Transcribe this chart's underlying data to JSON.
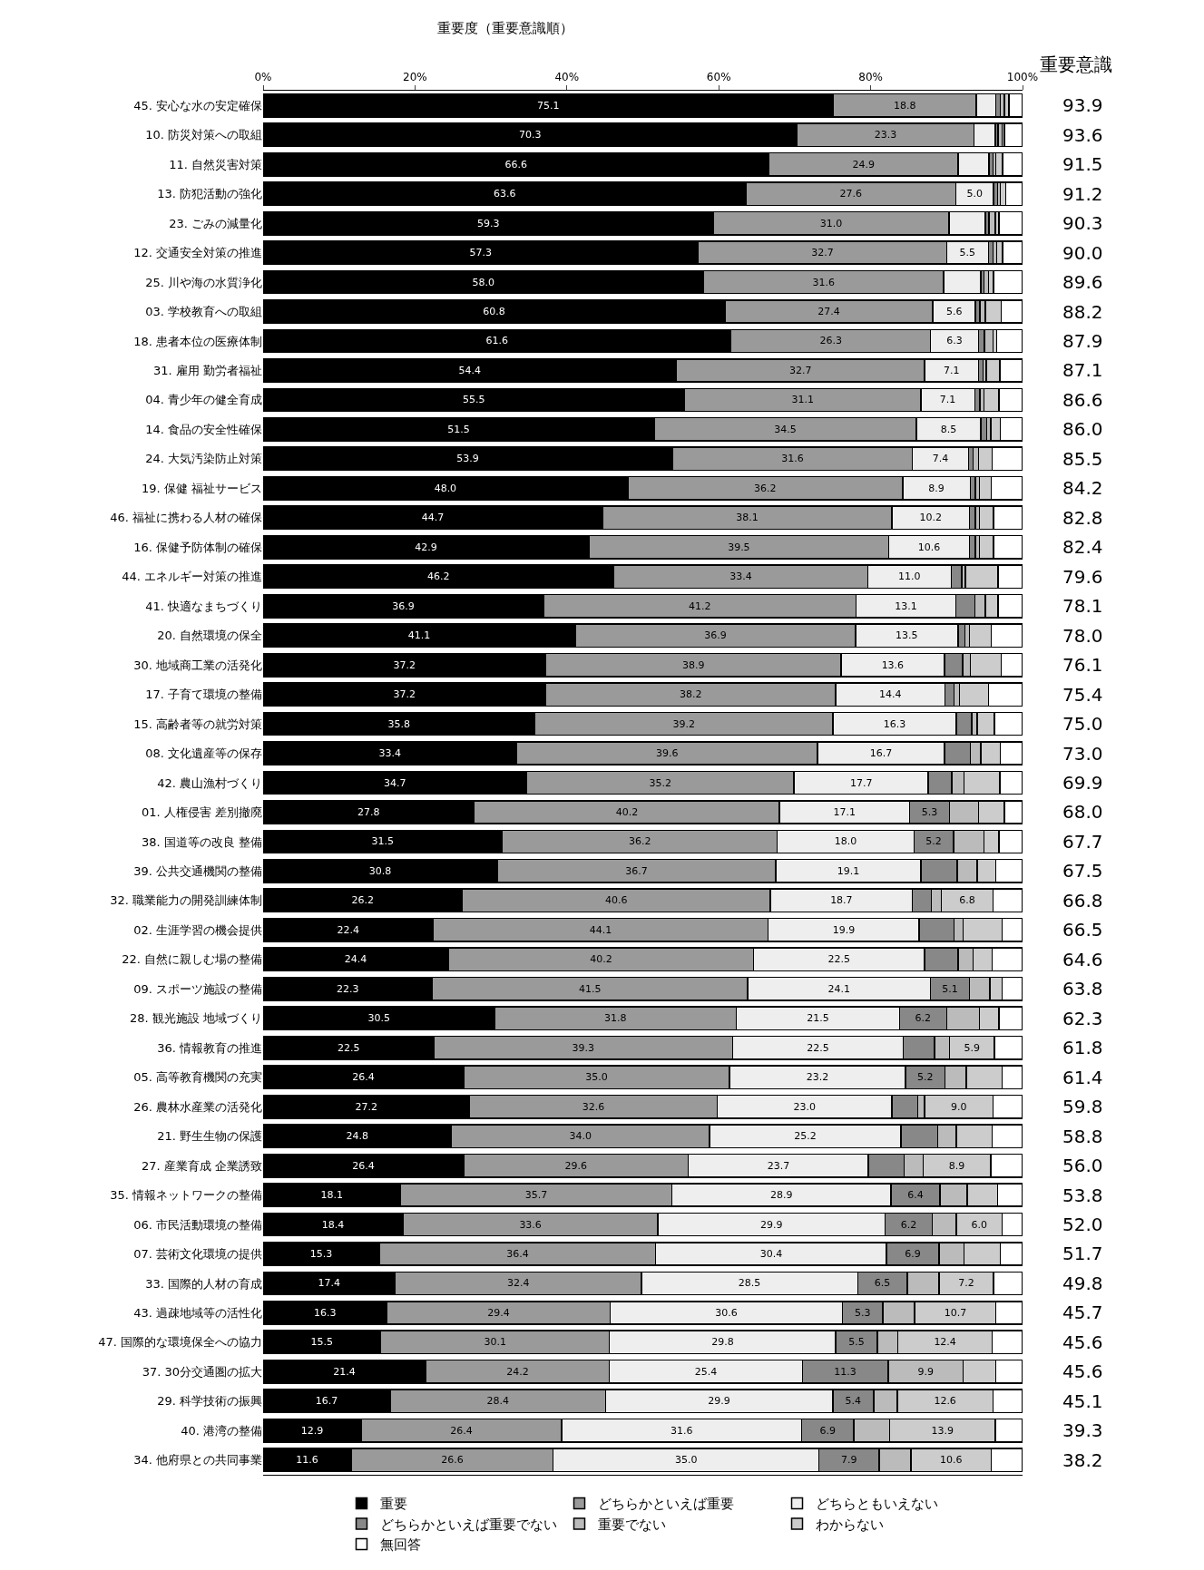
{
  "chart_data": {
    "type": "bar",
    "orientation": "horizontal",
    "stacked": true,
    "title": "重要度（重要意識順）",
    "categories": [
      "45. 安心な水の安定確保",
      "10. 防災対策への取組",
      "11. 自然災害対策",
      "13. 防犯活動の強化",
      "23. ごみの減量化",
      "12. 交通安全対策の推進",
      "25. 川や海の水質浄化",
      "03. 学校教育への取組",
      "18. 患者本位の医療体制",
      "31. 雇用 勤労者福祉",
      "04. 青少年の健全育成",
      "14. 食品の安全性確保",
      "24. 大気汚染防止対策",
      "19. 保健 福祉サービス",
      "46. 福祉に携わる人材の確保",
      "16. 保健予防体制の確保",
      "44. エネルギー対策の推進",
      "41. 快適なまちづくり",
      "20. 自然環境の保全",
      "30. 地域商工業の活発化",
      "17. 子育て環境の整備",
      "15. 高齢者等の就労対策",
      "08. 文化遺産等の保存",
      "42. 農山漁村づくり",
      "01. 人権侵害 差別撤廃",
      "38. 国道等の改良 整備",
      "39. 公共交通機関の整備",
      "32. 職業能力の開発訓練体制",
      "02. 生涯学習の機会提供",
      "22. 自然に親しむ場の整備",
      "09. スポーツ施設の整備",
      "28. 観光施設 地域づくり",
      "36. 情報教育の推進",
      "05. 高等教育機関の充実",
      "26. 農林水産業の活発化",
      "21. 野生生物の保護",
      "27. 産業育成 企業誘致",
      "35. 情報ネットワークの整備",
      "06. 市民活動環境の整備",
      "07. 芸術文化環境の提供",
      "33. 国際的人材の育成",
      "43. 過疎地域等の活性化",
      "47. 国際的な環境保全への協力",
      "37. 30分交通圏の拡大",
      "29. 科学技術の振興",
      "40. 港湾の整備",
      "34. 他府県との共同事業"
    ],
    "series": [
      {
        "name": "重要",
        "color": "#000000",
        "values": [
          75.1,
          70.3,
          66.6,
          63.6,
          59.3,
          57.3,
          58.0,
          60.8,
          61.6,
          54.4,
          55.5,
          51.5,
          53.9,
          48.0,
          44.7,
          42.9,
          46.2,
          36.9,
          41.1,
          37.2,
          37.2,
          35.8,
          33.4,
          34.7,
          27.8,
          31.5,
          30.8,
          26.2,
          22.4,
          24.4,
          22.3,
          30.5,
          22.5,
          26.4,
          27.2,
          24.8,
          26.4,
          18.1,
          18.4,
          15.3,
          17.4,
          16.3,
          15.5,
          21.4,
          16.7,
          12.9,
          11.6
        ],
        "value_labels": [
          "75.1",
          "70.3",
          "66.6",
          "63.6",
          "59.3",
          "57.3",
          "58.0",
          "60.8",
          "61.6",
          "54.4",
          "55.5",
          "51.5",
          "53.9",
          "48.0",
          "44.7",
          "42.9",
          "46.2",
          "36.9",
          "41.1",
          "37.2",
          "37.2",
          "35.8",
          "33.4",
          "34.7",
          "27.8",
          "31.5",
          "30.8",
          "26.2",
          "22.4",
          "24.4",
          "22.3",
          "30.5",
          "22.5",
          "26.4",
          "27.2",
          "24.8",
          "26.4",
          "18.1",
          "18.4",
          "15.3",
          "17.4",
          "16.3",
          "15.5",
          "21.4",
          "16.7",
          "12.9",
          "11.6"
        ]
      },
      {
        "name": "どちらかといえば重要",
        "color": "#9a9a9a",
        "values": [
          18.8,
          23.3,
          24.9,
          27.6,
          31.0,
          32.7,
          31.6,
          27.4,
          26.3,
          32.7,
          31.1,
          34.5,
          31.6,
          36.2,
          38.1,
          39.5,
          33.4,
          41.2,
          36.9,
          38.9,
          38.2,
          39.2,
          39.6,
          35.2,
          40.2,
          36.2,
          36.7,
          40.6,
          44.1,
          40.2,
          41.5,
          31.8,
          39.3,
          35.0,
          32.6,
          34.0,
          29.6,
          35.7,
          33.6,
          36.4,
          32.4,
          29.4,
          30.1,
          24.2,
          28.4,
          26.4,
          26.6
        ],
        "value_labels": [
          "18.8",
          "23.3",
          "24.9",
          "27.6",
          "31.0",
          "32.7",
          "31.6",
          "27.4",
          "26.3",
          "32.7",
          "31.1",
          "34.5",
          "31.6",
          "36.2",
          "38.1",
          "39.5",
          "33.4",
          "41.2",
          "36.9",
          "38.9",
          "38.2",
          "39.2",
          "39.6",
          "35.2",
          "40.2",
          "36.2",
          "36.7",
          "40.6",
          "44.1",
          "40.2",
          "41.5",
          "31.8",
          "39.3",
          "35.0",
          "32.6",
          "34.0",
          "29.6",
          "35.7",
          "33.6",
          "36.4",
          "32.4",
          "29.4",
          "30.1",
          "24.2",
          "28.4",
          "26.4",
          "26.6"
        ]
      },
      {
        "name": "どちらともいえない",
        "color": "#eeeeee",
        "values": [
          2.6,
          2.8,
          4.1,
          5.0,
          4.8,
          5.5,
          4.9,
          5.6,
          6.3,
          7.1,
          7.1,
          8.5,
          7.4,
          8.9,
          10.2,
          10.6,
          11.0,
          13.1,
          13.5,
          13.6,
          14.4,
          16.3,
          16.7,
          17.7,
          17.1,
          18.0,
          19.1,
          18.7,
          19.9,
          22.5,
          24.1,
          21.5,
          22.5,
          23.2,
          23.0,
          25.2,
          23.7,
          28.9,
          29.9,
          30.4,
          28.5,
          30.6,
          29.8,
          25.4,
          29.9,
          31.6,
          35.0
        ],
        "value_labels": [
          null,
          null,
          null,
          "5.0",
          null,
          "5.5",
          null,
          "5.6",
          "6.3",
          "7.1",
          "7.1",
          "8.5",
          "7.4",
          "8.9",
          "10.2",
          "10.6",
          "11.0",
          "13.1",
          "13.5",
          "13.6",
          "14.4",
          "16.3",
          "16.7",
          "17.7",
          "17.1",
          "18.0",
          "19.1",
          "18.7",
          "19.9",
          "22.5",
          "24.1",
          "21.5",
          "22.5",
          "23.2",
          "23.0",
          "25.2",
          "23.7",
          "28.9",
          "29.9",
          "30.4",
          "28.5",
          "30.6",
          "29.8",
          "25.4",
          "29.9",
          "31.6",
          "35.0"
        ]
      },
      {
        "name": "どちらかといえば重要でない",
        "color": "#888888",
        "values": [
          0.6,
          0.4,
          0.5,
          0.5,
          0.5,
          0.6,
          0.4,
          0.6,
          0.8,
          0.6,
          0.7,
          0.8,
          0.6,
          0.7,
          0.8,
          0.8,
          1.4,
          2.5,
          0.9,
          2.4,
          1.2,
          2.0,
          3.4,
          3.1,
          5.3,
          5.2,
          4.8,
          2.5,
          4.6,
          4.4,
          5.1,
          6.2,
          4.1,
          5.2,
          3.4,
          4.8,
          4.7,
          6.4,
          6.2,
          6.9,
          6.5,
          5.3,
          5.5,
          11.3,
          5.4,
          6.9,
          7.9
        ],
        "value_labels": [
          null,
          null,
          null,
          null,
          null,
          null,
          null,
          null,
          null,
          null,
          null,
          null,
          null,
          null,
          null,
          null,
          null,
          null,
          null,
          null,
          null,
          null,
          null,
          null,
          "5.3",
          "5.2",
          null,
          null,
          null,
          null,
          "5.1",
          "6.2",
          null,
          "5.2",
          null,
          null,
          null,
          "6.4",
          "6.2",
          "6.9",
          "6.5",
          "5.3",
          "5.5",
          "11.3",
          "5.4",
          "6.9",
          "7.9"
        ]
      },
      {
        "name": "重要でない",
        "color": "#bbbbbb",
        "values": [
          0.5,
          0.5,
          0.4,
          0.4,
          0.8,
          0.5,
          0.6,
          0.7,
          1.1,
          0.4,
          0.5,
          0.5,
          0.7,
          0.5,
          0.5,
          0.5,
          0.5,
          1.4,
          0.6,
          1.0,
          0.7,
          0.7,
          1.4,
          1.6,
          3.8,
          4.0,
          2.6,
          1.3,
          1.2,
          2.0,
          2.7,
          4.3,
          2.0,
          2.8,
          0.9,
          2.5,
          2.5,
          3.6,
          3.2,
          3.3,
          4.2,
          4.2,
          2.7,
          9.9,
          3.1,
          4.7,
          4.2
        ],
        "value_labels": [
          null,
          null,
          null,
          null,
          null,
          null,
          null,
          null,
          null,
          null,
          null,
          null,
          null,
          null,
          null,
          null,
          null,
          null,
          null,
          null,
          null,
          null,
          null,
          null,
          null,
          null,
          null,
          null,
          null,
          null,
          null,
          null,
          null,
          null,
          null,
          null,
          null,
          null,
          null,
          null,
          null,
          null,
          null,
          "9.9",
          null,
          null,
          null
        ]
      },
      {
        "name": "わからない",
        "color": "#cccccc",
        "values": [
          0.6,
          0.3,
          0.9,
          0.7,
          0.5,
          0.8,
          0.7,
          2.1,
          0.5,
          1.8,
          2.0,
          1.3,
          1.8,
          1.6,
          1.9,
          1.9,
          4.3,
          1.7,
          2.9,
          4.1,
          3.8,
          2.3,
          2.6,
          4.7,
          3.4,
          2.0,
          2.5,
          6.8,
          5.1,
          2.5,
          1.6,
          2.6,
          5.9,
          4.7,
          9.0,
          4.7,
          8.9,
          4.0,
          6.0,
          4.8,
          7.2,
          10.7,
          12.4,
          4.3,
          12.6,
          13.9,
          10.6
        ],
        "value_labels": [
          null,
          null,
          null,
          null,
          null,
          null,
          null,
          null,
          null,
          null,
          null,
          null,
          null,
          null,
          null,
          null,
          null,
          null,
          null,
          null,
          null,
          null,
          null,
          null,
          null,
          null,
          null,
          "6.8",
          null,
          null,
          null,
          null,
          "5.9",
          null,
          "9.0",
          null,
          "8.9",
          null,
          "6.0",
          null,
          "7.2",
          "10.7",
          "12.4",
          null,
          "12.6",
          "13.9",
          "10.6"
        ]
      },
      {
        "name": "無回答",
        "color": "#ffffff",
        "values": [
          1.8,
          2.4,
          2.6,
          2.2,
          3.1,
          2.6,
          3.8,
          2.8,
          3.4,
          3.0,
          3.1,
          2.9,
          4.0,
          4.1,
          3.8,
          3.8,
          3.2,
          3.2,
          4.1,
          2.8,
          4.5,
          3.7,
          2.9,
          3.0,
          2.4,
          3.1,
          3.5,
          3.9,
          2.7,
          4.0,
          2.7,
          3.1,
          3.7,
          2.7,
          3.9,
          4.0,
          4.2,
          3.3,
          2.7,
          2.9,
          3.8,
          3.5,
          4.0,
          3.5,
          3.9,
          3.6,
          4.1
        ]
      }
    ],
    "xlim": [
      0,
      100
    ],
    "xticks": [
      {
        "value": 0,
        "label": "0%"
      },
      {
        "value": 20,
        "label": "20%"
      },
      {
        "value": 40,
        "label": "40%"
      },
      {
        "value": 60,
        "label": "60%"
      },
      {
        "value": 80,
        "label": "80%"
      },
      {
        "value": 100,
        "label": "100%"
      }
    ],
    "legend": "bottom",
    "annotations": [
      "重要意識",
      "93.9",
      "93.6",
      "91.5",
      "91.2",
      "90.3",
      "90.0",
      "89.6",
      "88.2",
      "87.9",
      "87.1",
      "86.6",
      "86.0",
      "85.5",
      "84.2",
      "82.8",
      "82.4",
      "79.6",
      "78.1",
      "78.0",
      "76.1",
      "75.4",
      "75.0",
      "73.0",
      "69.9",
      "68.0",
      "67.7",
      "67.5",
      "66.8",
      "66.5",
      "64.6",
      "63.8",
      "62.3",
      "61.8",
      "61.4",
      "59.8",
      "58.8",
      "56.0",
      "53.8",
      "52.0",
      "51.7",
      "49.8",
      "45.7",
      "45.6",
      "45.6",
      "45.1",
      "39.3",
      "38.2"
    ]
  }
}
